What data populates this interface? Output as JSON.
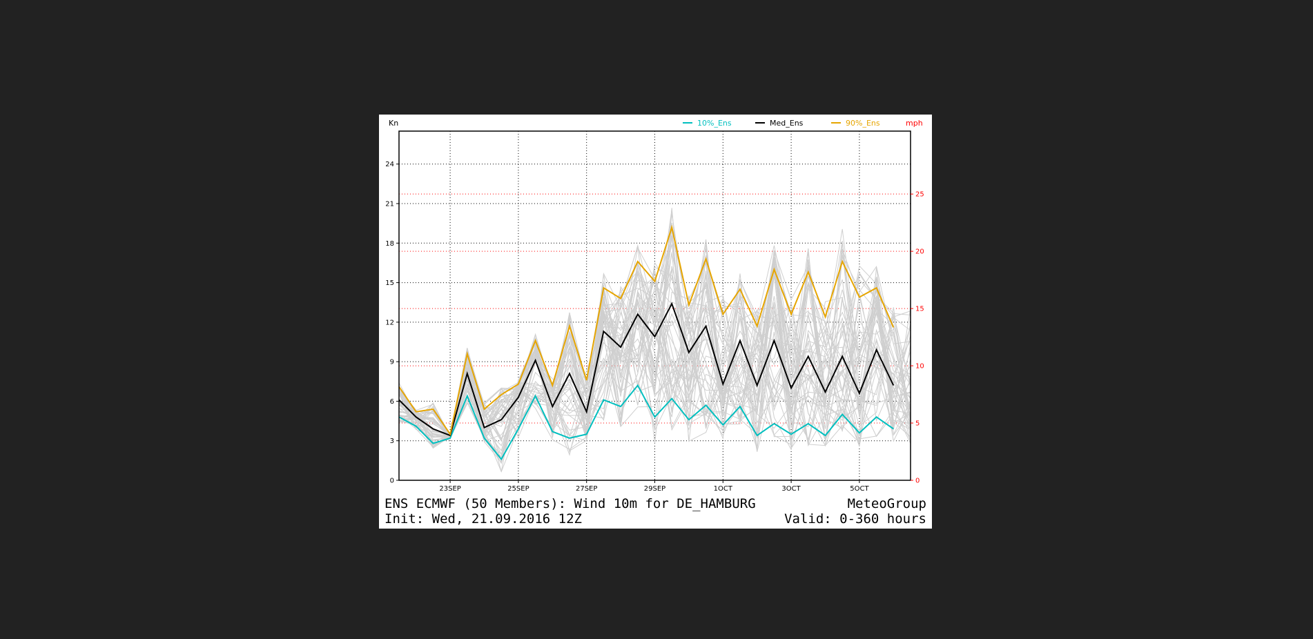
{
  "chart_data": {
    "type": "line",
    "left_axis": {
      "label": "Kn",
      "ticks": [
        0,
        3,
        6,
        9,
        12,
        15,
        18,
        21,
        24
      ],
      "range": [
        0,
        26.5
      ]
    },
    "right_axis": {
      "label": "mph",
      "ticks": [
        0,
        5,
        10,
        15,
        20,
        25
      ],
      "color": "#ff0000"
    },
    "x_labels": [
      {
        "label": "23SEP",
        "hour": 36
      },
      {
        "label": "25SEP",
        "hour": 84
      },
      {
        "label": "27SEP",
        "hour": 132
      },
      {
        "label": "29SEP",
        "hour": 180
      },
      {
        "label": "1OCT",
        "hour": 228
      },
      {
        "label": "3OCT",
        "hour": 276
      },
      {
        "label": "5OCT",
        "hour": 324
      }
    ],
    "x_range_hours": [
      0,
      360
    ],
    "grid": "dotted",
    "legend_position": "top",
    "member_count": 50,
    "x_hours": [
      0,
      12,
      24,
      36,
      48,
      60,
      72,
      84,
      96,
      108,
      120,
      132,
      144,
      156,
      168,
      180,
      192,
      204,
      216,
      228,
      240,
      252,
      264,
      276,
      288,
      300,
      312,
      324,
      336,
      348,
      360
    ],
    "series": [
      {
        "name": "10%_Ens",
        "color": "#00bfbf",
        "values": [
          4.8,
          4.1,
          2.8,
          3.2,
          6.4,
          3.2,
          1.6,
          3.9,
          6.4,
          3.7,
          3.2,
          3.5,
          6.1,
          5.6,
          7.2,
          4.8,
          6.2,
          4.6,
          5.7,
          4.2,
          5.6,
          3.4,
          4.3,
          3.5,
          4.3,
          3.4,
          5.0,
          3.6,
          4.8,
          3.9,
          null
        ]
      },
      {
        "name": "Med_Ens",
        "color": "#000000",
        "values": [
          6.1,
          4.8,
          3.9,
          3.4,
          8.1,
          4.0,
          4.6,
          6.3,
          9.1,
          5.6,
          8.1,
          5.2,
          11.3,
          10.1,
          12.6,
          10.9,
          13.4,
          9.7,
          11.7,
          7.3,
          10.6,
          7.2,
          10.6,
          7.0,
          9.4,
          6.7,
          9.4,
          6.6,
          9.9,
          7.2,
          null
        ]
      },
      {
        "name": "90%_Ens",
        "color": "#e6a500",
        "values": [
          7.1,
          5.2,
          5.4,
          3.5,
          9.6,
          5.4,
          6.5,
          7.3,
          10.6,
          7.2,
          11.7,
          7.6,
          14.6,
          13.8,
          16.6,
          15.1,
          19.2,
          13.3,
          16.8,
          12.6,
          14.5,
          11.7,
          16.0,
          12.6,
          15.8,
          12.4,
          16.6,
          13.9,
          14.6,
          11.6,
          null
        ]
      }
    ],
    "title": "ENS ECMWF (50 Members): Wind 10m for DE_HAMBURG",
    "subtitle": "Init: Wed, 21.09.2016 12Z",
    "source": "MeteoGroup",
    "valid": "Valid: 0-360 hours"
  }
}
